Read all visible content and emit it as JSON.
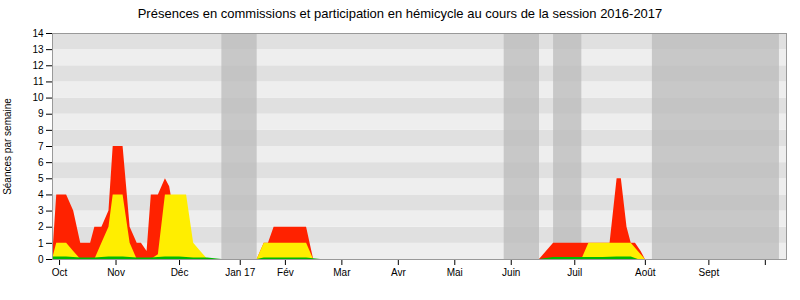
{
  "chart_data": {
    "type": "area",
    "title": "Présences en commissions et participation en hémicycle au cours de la session 2016-2017",
    "ylabel": "Séances par semaine",
    "xlim": [
      0,
      52
    ],
    "xticks": [
      {
        "value": 0.5,
        "label": "Oct"
      },
      {
        "value": 4.5,
        "label": "Nov"
      },
      {
        "value": 9.0,
        "label": "Déc"
      },
      {
        "value": 13.3,
        "label": "Jan 17"
      },
      {
        "value": 16.5,
        "label": "Fév"
      },
      {
        "value": 20.5,
        "label": "Mar"
      },
      {
        "value": 24.5,
        "label": "Avr"
      },
      {
        "value": 28.5,
        "label": "Mai"
      },
      {
        "value": 32.5,
        "label": "Juin"
      },
      {
        "value": 37.0,
        "label": "Juil"
      },
      {
        "value": 42.0,
        "label": "Août"
      },
      {
        "value": 46.5,
        "label": "Sept"
      },
      {
        "value": 50.5,
        "label": null
      }
    ],
    "ylim": [
      0,
      14
    ],
    "yticks": [
      0,
      1,
      2,
      3,
      4,
      5,
      6,
      7,
      8,
      9,
      10,
      11,
      12,
      13,
      14
    ],
    "grid": false,
    "bands": [
      {
        "start": 12.0,
        "end": 14.5
      },
      {
        "start": 32.0,
        "end": 34.5
      },
      {
        "start": 35.5,
        "end": 37.5
      },
      {
        "start": 42.5,
        "end": 51.5
      }
    ],
    "hlines": [
      14
    ],
    "series": [
      {
        "color": "#ff2200",
        "x": [
          0,
          0.3,
          1,
          1.5,
          2,
          2.3,
          2.7,
          3,
          3.5,
          4,
          4.3,
          5,
          5.5,
          6,
          6.3,
          6.7,
          7,
          7.5,
          8,
          8.3,
          9,
          9.5,
          10,
          10.3,
          11,
          11.5,
          12,
          14.5,
          15,
          15.3,
          15.7,
          16,
          16.5,
          17,
          17.5,
          18,
          18.5,
          19,
          19.5,
          20,
          24,
          28,
          32,
          34.5,
          35.5,
          37.5,
          38,
          38.5,
          39,
          39.5,
          40,
          40.3,
          40.7,
          41,
          41.3,
          41.7,
          42,
          42.5,
          51.5,
          52
        ],
        "values": [
          0,
          4,
          4,
          3,
          1,
          1,
          1,
          2,
          2,
          3,
          7,
          7,
          2,
          1,
          1,
          0.5,
          4,
          4,
          5,
          4.5,
          1,
          0.5,
          0,
          0,
          0,
          0,
          0,
          0,
          1,
          1,
          2,
          2,
          2,
          2,
          2,
          2,
          0,
          0,
          0,
          0,
          0,
          0,
          0,
          0,
          1,
          1,
          1,
          1,
          1,
          1,
          5,
          5,
          2,
          1,
          1,
          0.5,
          0,
          0,
          0,
          0
        ]
      },
      {
        "color": "#ffee00",
        "x": [
          0,
          0.3,
          1,
          1.5,
          2,
          2.5,
          3,
          3.5,
          4,
          4.3,
          5,
          5.5,
          6,
          6.5,
          7,
          7.5,
          8,
          8.3,
          9,
          9.5,
          10,
          10.5,
          11,
          11.5,
          12,
          14.5,
          15,
          15.5,
          16,
          16.5,
          17,
          17.5,
          18,
          18.5,
          19,
          19.5,
          20,
          24,
          28,
          32,
          34.5,
          35.5,
          37.5,
          38,
          38.5,
          39,
          39.5,
          40,
          40.5,
          41,
          41.5,
          42,
          42.5,
          51.5,
          52
        ],
        "values": [
          0,
          1,
          1,
          0.5,
          0,
          0,
          0,
          1,
          2,
          4,
          4,
          1,
          0,
          0,
          0,
          0.3,
          4,
          4,
          4,
          4,
          1,
          0.5,
          0,
          0,
          0,
          0,
          1,
          1,
          1,
          1,
          1,
          1,
          1,
          0,
          0,
          0,
          0,
          0,
          0,
          0,
          0,
          0,
          0,
          1,
          1,
          1,
          1,
          1,
          1,
          1,
          0.5,
          0,
          0,
          0,
          0
        ]
      },
      {
        "color": "#00bb00",
        "x": [
          0,
          1,
          2,
          3,
          4,
          5,
          6,
          7,
          8,
          9,
          10,
          11,
          12,
          14.5,
          15,
          16,
          17,
          18,
          19,
          20,
          32,
          34.5,
          35.5,
          37.5,
          38,
          39,
          40,
          41,
          41.5,
          42,
          42.5,
          51.5,
          52
        ],
        "values": [
          0.15,
          0.15,
          0.1,
          0.1,
          0.15,
          0.15,
          0.1,
          0.1,
          0.15,
          0.15,
          0.1,
          0.1,
          0,
          0,
          0.1,
          0.1,
          0.1,
          0.1,
          0,
          0,
          0,
          0,
          0.12,
          0.12,
          0.12,
          0.12,
          0.15,
          0.15,
          0,
          0,
          0,
          0,
          0
        ]
      }
    ]
  }
}
